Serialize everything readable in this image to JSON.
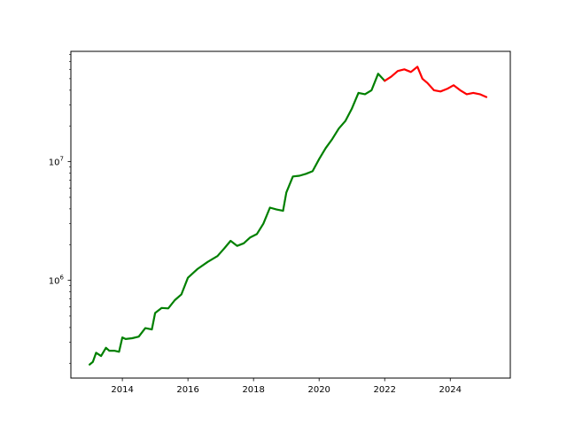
{
  "chart_data": {
    "type": "line",
    "title": "",
    "xlabel": "",
    "ylabel": "",
    "y_scale": "log",
    "grid": false,
    "legend": "none",
    "xlim": [
      2012.43,
      2025.83
    ],
    "ylim": [
      150000,
      85000000
    ],
    "x_ticks": [
      {
        "value": 2014,
        "label": "2014"
      },
      {
        "value": 2016,
        "label": "2016"
      },
      {
        "value": 2018,
        "label": "2018"
      },
      {
        "value": 2020,
        "label": "2020"
      },
      {
        "value": 2022,
        "label": "2022"
      },
      {
        "value": 2024,
        "label": "2024"
      }
    ],
    "y_ticks": [
      {
        "value": 1000000,
        "base": "10",
        "exp": "6"
      },
      {
        "value": 10000000,
        "base": "10",
        "exp": "7"
      }
    ],
    "series": [
      {
        "color": "#008000",
        "x": [
          2013.0,
          2013.1,
          2013.2,
          2013.35,
          2013.5,
          2013.6,
          2013.75,
          2013.9,
          2014.0,
          2014.1,
          2014.3,
          2014.5,
          2014.7,
          2014.9,
          2015.0,
          2015.2,
          2015.4,
          2015.6,
          2015.8,
          2016.0,
          2016.3,
          2016.6,
          2016.9,
          2017.1,
          2017.3,
          2017.5,
          2017.7,
          2017.9,
          2018.1,
          2018.3,
          2018.5,
          2018.7,
          2018.9,
          2019.0,
          2019.2,
          2019.4,
          2019.6,
          2019.8,
          2020.0,
          2020.2,
          2020.4,
          2020.6,
          2020.8,
          2021.0,
          2021.2,
          2021.4,
          2021.6,
          2021.8,
          2022.0
        ],
        "values": [
          195000,
          205000,
          245000,
          230000,
          270000,
          255000,
          255000,
          250000,
          330000,
          320000,
          325000,
          335000,
          395000,
          385000,
          530000,
          585000,
          580000,
          680000,
          760000,
          1050000,
          1250000,
          1430000,
          1600000,
          1850000,
          2150000,
          1950000,
          2050000,
          2300000,
          2450000,
          3000000,
          4100000,
          3950000,
          3850000,
          5500000,
          7500000,
          7600000,
          7900000,
          8300000,
          10500000,
          13000000,
          15500000,
          19000000,
          22000000,
          28000000,
          38000000,
          37000000,
          40000000,
          55000000,
          48000000
        ]
      },
      {
        "color": "#ff0000",
        "x": [
          2022.0,
          2022.2,
          2022.4,
          2022.6,
          2022.8,
          2023.0,
          2023.15,
          2023.3,
          2023.5,
          2023.7,
          2023.9,
          2024.1,
          2024.3,
          2024.5,
          2024.7,
          2024.9,
          2025.1
        ],
        "values": [
          48000000,
          52000000,
          58000000,
          60000000,
          57000000,
          63000000,
          50000000,
          46000000,
          40000000,
          39000000,
          41000000,
          44000000,
          40000000,
          37000000,
          38000000,
          37000000,
          35000000
        ]
      }
    ]
  }
}
